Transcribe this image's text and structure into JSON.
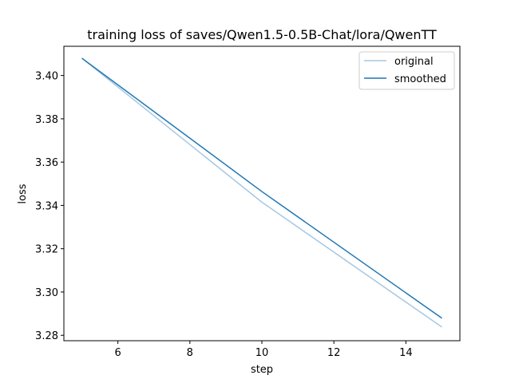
{
  "chart_data": {
    "type": "line",
    "title": "training loss of saves/Qwen1.5-0.5B-Chat/lora/QwenTT",
    "xlabel": "step",
    "ylabel": "loss",
    "xlim": [
      4.5,
      15.5
    ],
    "ylim": [
      3.2775,
      3.4135
    ],
    "xticks": [
      6,
      8,
      10,
      12,
      14
    ],
    "yticks": [
      3.28,
      3.3,
      3.32,
      3.34,
      3.36,
      3.38,
      3.4
    ],
    "xtick_labels": [
      "6",
      "8",
      "10",
      "12",
      "14"
    ],
    "ytick_labels": [
      "3.28",
      "3.30",
      "3.32",
      "3.34",
      "3.36",
      "3.38",
      "3.40"
    ],
    "grid": false,
    "legend_position": "top-right",
    "series": [
      {
        "name": "original",
        "color": "#a6c8e3",
        "x": [
          5,
          10,
          15
        ],
        "y": [
          3.408,
          3.3415,
          3.2838
        ]
      },
      {
        "name": "smoothed",
        "color": "#1f77b4",
        "x": [
          5,
          10,
          15
        ],
        "y": [
          3.408,
          3.3464,
          3.2879
        ]
      }
    ]
  }
}
